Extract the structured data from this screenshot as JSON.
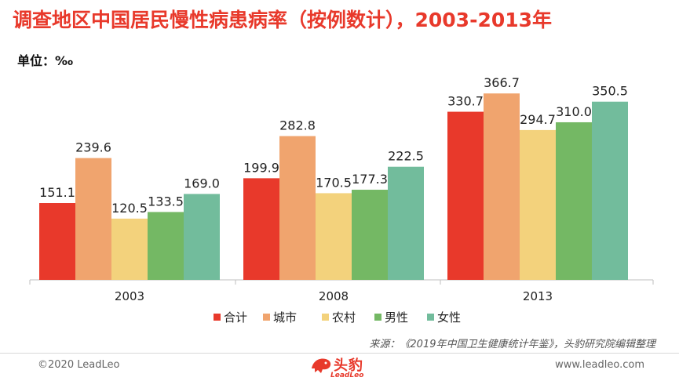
{
  "header": {
    "title": "调查地区中国居民慢性病患病率（按例数计），2003-2013年",
    "unit": "单位：‰"
  },
  "source": "来源：《2019年中国卫生健康统计年鉴》，头豹研究院编辑整理",
  "footer": {
    "copyright": "©2020 LeadLeo",
    "website": "www.leadleo.com",
    "logo_text": "头豹",
    "logo_sub": "LeadLeo"
  },
  "colors": {
    "title": "#e8392b"
  },
  "chart_data": {
    "type": "bar",
    "title": "调查地区中国居民慢性病患病率（按例数计），2003-2013年",
    "ylabel": "单位：‰",
    "xlabel": "",
    "categories": [
      "2003",
      "2008",
      "2013"
    ],
    "ylim": [
      0,
      400
    ],
    "grid": false,
    "legend_position": "bottom",
    "series": [
      {
        "name": "合计",
        "color": "#e8392b",
        "values": [
          151.1,
          199.9,
          330.7
        ]
      },
      {
        "name": "城市",
        "color": "#f0a46e",
        "values": [
          239.6,
          282.8,
          366.7
        ]
      },
      {
        "name": "农村",
        "color": "#f3d27c",
        "values": [
          120.5,
          170.5,
          294.7
        ]
      },
      {
        "name": "男性",
        "color": "#74b864",
        "values": [
          133.5,
          177.3,
          310.0
        ]
      },
      {
        "name": "女性",
        "color": "#72bc9c",
        "values": [
          169.0,
          222.5,
          350.5
        ]
      }
    ]
  }
}
